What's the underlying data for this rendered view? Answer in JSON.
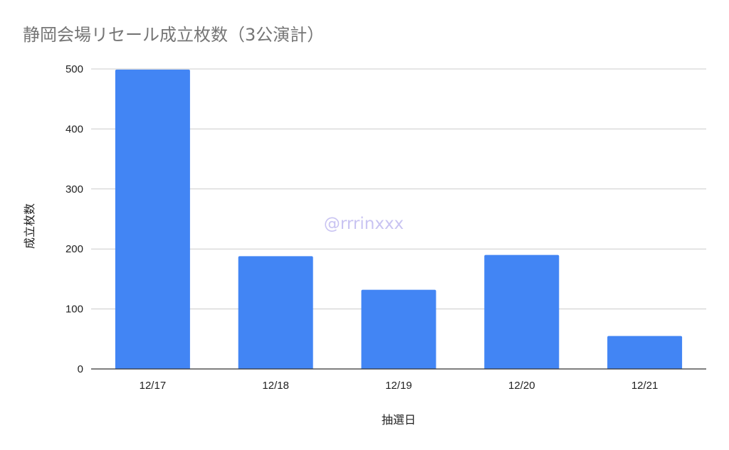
{
  "chart_data": {
    "type": "bar",
    "title": "静岡会場リセール成立枚数（3公演計）",
    "xlabel": "抽選日",
    "ylabel": "成立枚数",
    "categories": [
      "12/17",
      "12/18",
      "12/19",
      "12/20",
      "12/21"
    ],
    "values": [
      499,
      188,
      132,
      190,
      55
    ],
    "ylim": [
      0,
      500
    ],
    "yticks": [
      0,
      100,
      200,
      300,
      400,
      500
    ],
    "grid": true,
    "legend": "none",
    "bar_color": "#4285f4"
  },
  "watermark": "@rrrinxxx"
}
